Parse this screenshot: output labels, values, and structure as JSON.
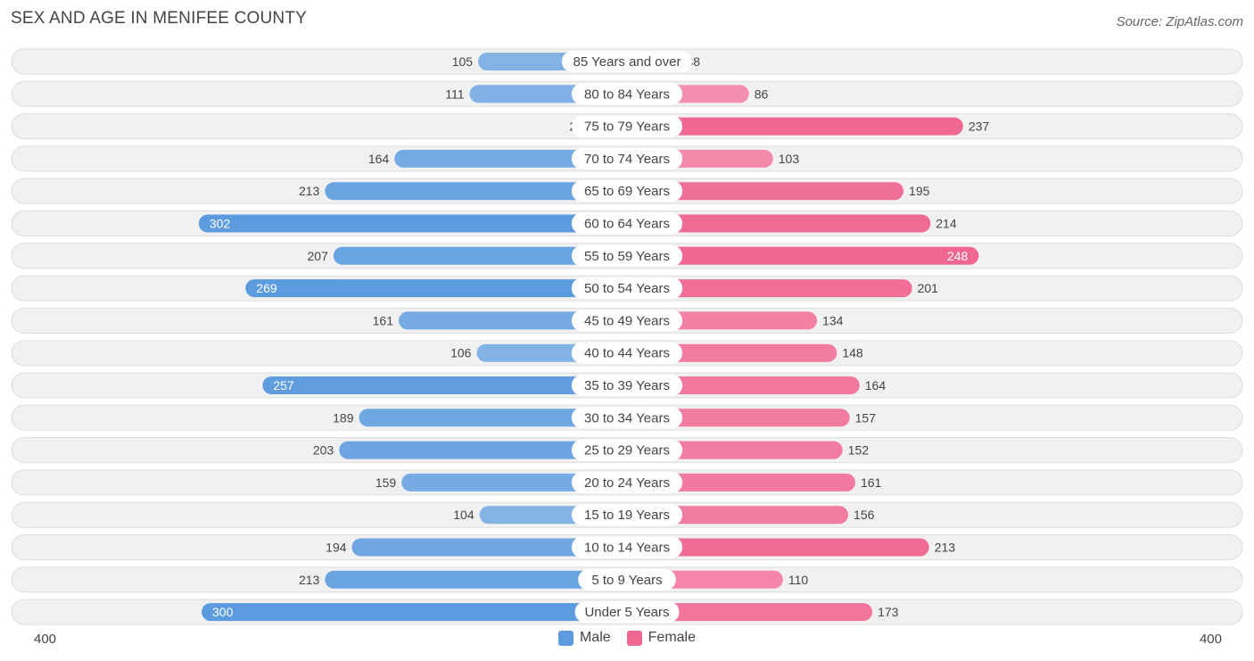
{
  "header": {
    "title": "SEX AND AGE IN MENIFEE COUNTY",
    "source": "Source: ZipAtlas.com"
  },
  "colors": {
    "male": "#5b9bde",
    "male_light": "#9cc2ea",
    "female": "#f06892",
    "female_light": "#f7a5bf",
    "row_bg": "#f1f1f1",
    "row_border": "#dddddd"
  },
  "legend": {
    "male_label": "Male",
    "female_label": "Female"
  },
  "axis": {
    "left_label": "400",
    "right_label": "400"
  },
  "chart_data": {
    "type": "bar",
    "orientation": "horizontal-diverging",
    "title": "SEX AND AGE IN MENIFEE COUNTY",
    "xlim": [
      -400,
      400
    ],
    "legend_position": "bottom-center",
    "categories": [
      "85 Years and over",
      "80 to 84 Years",
      "75 to 79 Years",
      "70 to 74 Years",
      "65 to 69 Years",
      "60 to 64 Years",
      "55 to 59 Years",
      "50 to 54 Years",
      "45 to 49 Years",
      "40 to 44 Years",
      "35 to 39 Years",
      "30 to 34 Years",
      "25 to 29 Years",
      "20 to 24 Years",
      "15 to 19 Years",
      "10 to 14 Years",
      "5 to 9 Years",
      "Under 5 Years"
    ],
    "series": [
      {
        "name": "Male",
        "values": [
          105,
          111,
          27,
          164,
          213,
          302,
          207,
          269,
          161,
          106,
          257,
          189,
          203,
          159,
          104,
          194,
          213,
          300
        ]
      },
      {
        "name": "Female",
        "values": [
          38,
          86,
          237,
          103,
          195,
          214,
          248,
          201,
          134,
          148,
          164,
          157,
          152,
          161,
          156,
          213,
          110,
          173
        ]
      }
    ]
  }
}
